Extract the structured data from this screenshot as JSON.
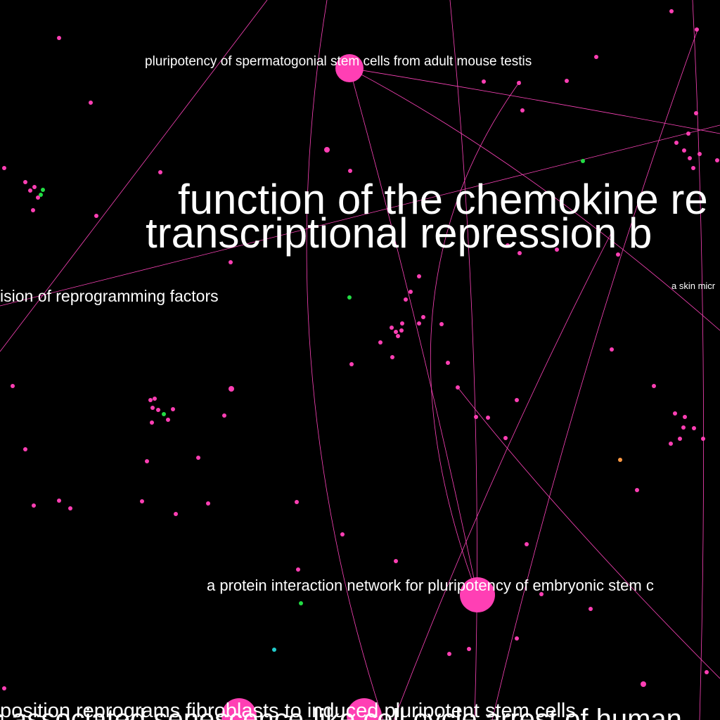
{
  "colors": {
    "background": "#000000",
    "edge": "#ff44bb",
    "node_pink": "#ff3fb4",
    "node_green": "#22dd44",
    "node_cyan": "#22cccc",
    "node_orange": "#ff9944",
    "label": "#ffffff"
  },
  "labels": [
    "pluripotency of spermatogonial stem cells from adult mouse testis",
    "function of the chemokine re",
    "transcriptional repression b",
    "ision of reprogramming factors",
    "a skin micr",
    "a protein interaction network for pluripotency of embryonic stem c",
    "position reprograms fibroblasts to induced pluripotent stem cells",
    "s associated senescence-like cell cycle arrest of human"
  ]
}
